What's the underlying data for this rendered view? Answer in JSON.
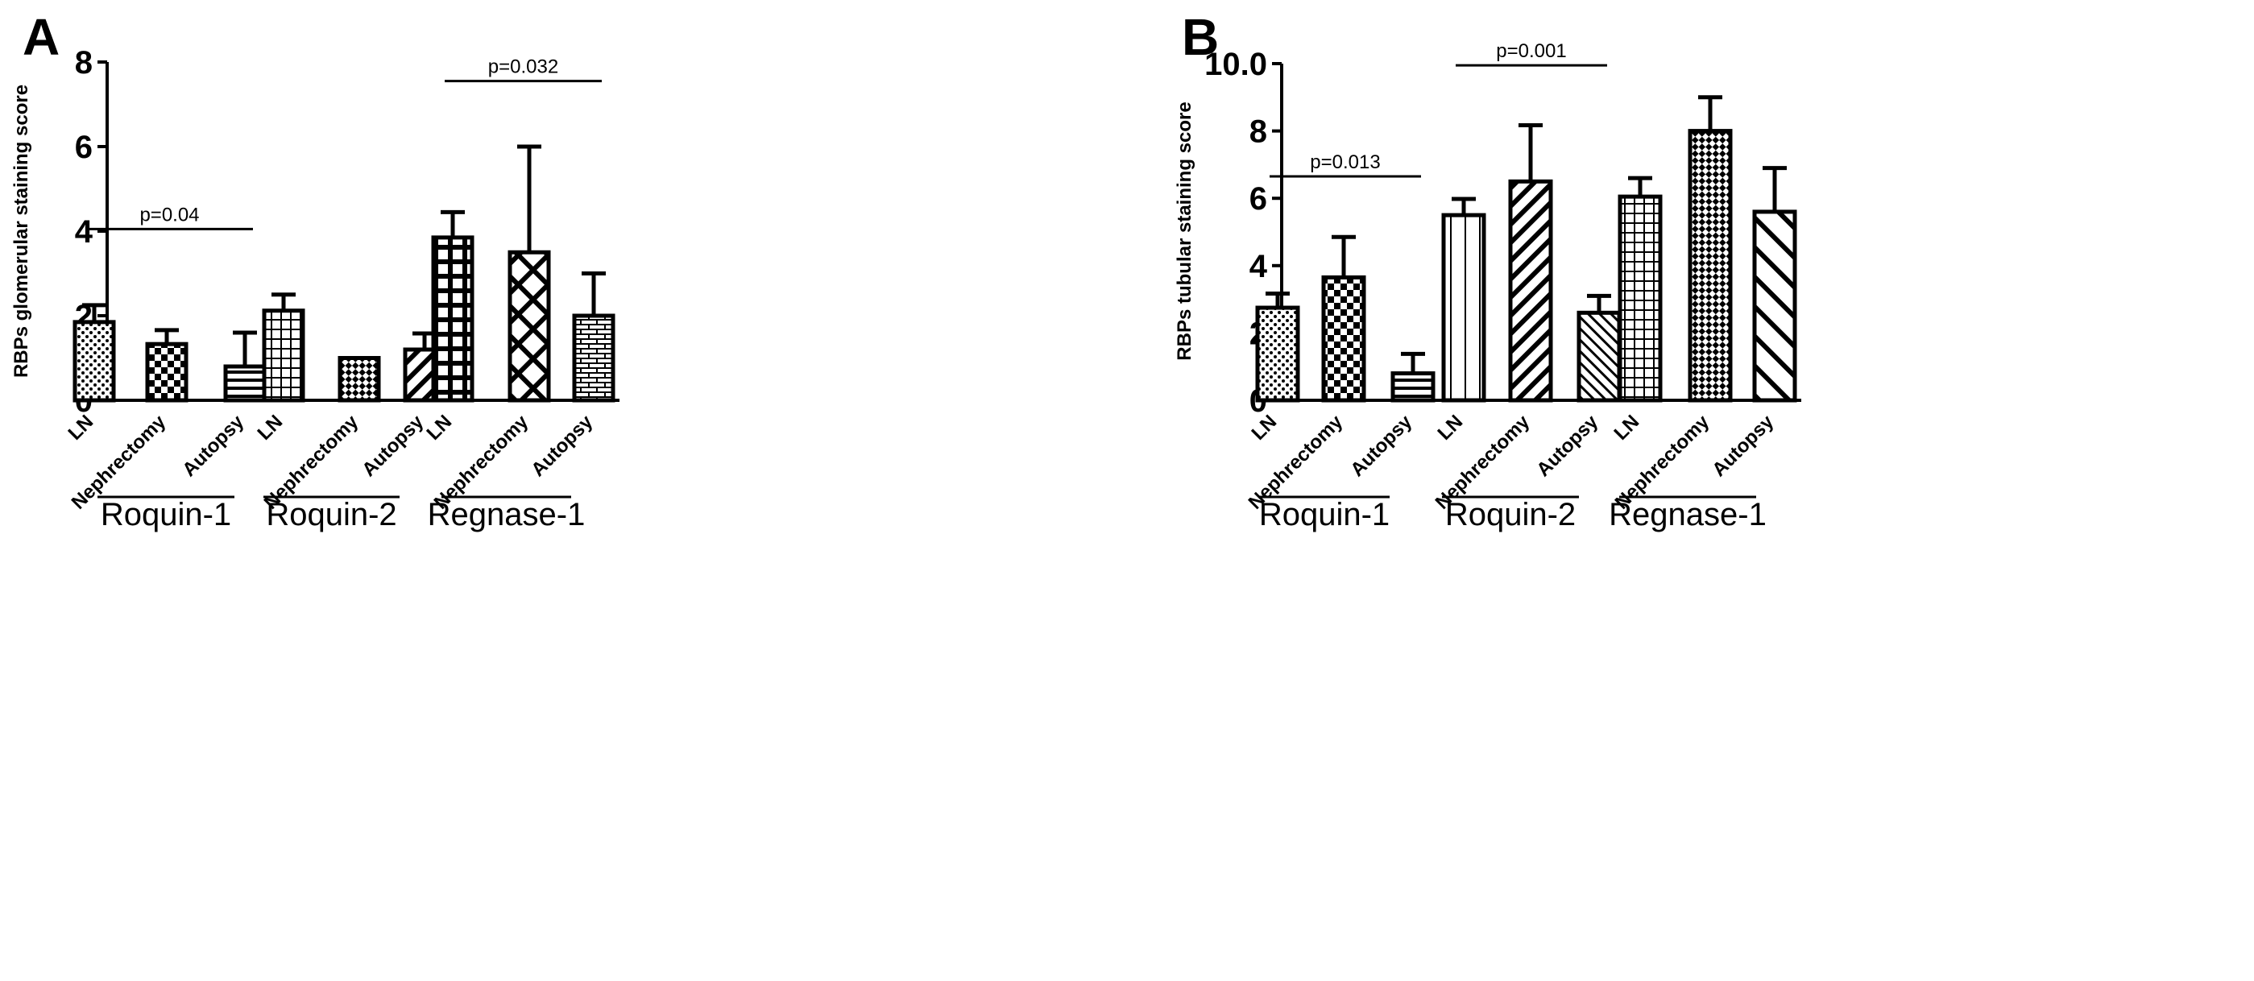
{
  "chart_data": [
    {
      "panel": "A",
      "type": "bar",
      "title": "",
      "ylabel": "RBPs glomerular staining score",
      "xlabel": "",
      "ylim": [
        0,
        8
      ],
      "yticks": [
        "0",
        "2",
        "4",
        "6",
        "8"
      ],
      "groups": [
        "Roquin-1",
        "Roquin-2",
        "Regnase-1"
      ],
      "categories": [
        "LN",
        "Nephrectomy",
        "Autopsy"
      ],
      "series": [
        {
          "name": "Roquin-1",
          "values": [
            1.85,
            1.33,
            0.8
          ],
          "errors": [
            0.4,
            0.33,
            0.8
          ]
        },
        {
          "name": "Roquin-2",
          "values": [
            2.12,
            1.0,
            1.2
          ],
          "errors": [
            0.38,
            0.0,
            0.38
          ]
        },
        {
          "name": "Regnase-1",
          "values": [
            3.85,
            3.5,
            2.0
          ],
          "errors": [
            0.6,
            2.5,
            1.0
          ]
        }
      ],
      "patterns": [
        "dots",
        "checker",
        "hlines",
        "grid",
        "diag-check",
        "diag-lines",
        "bold-grid",
        "diamond",
        "brick"
      ],
      "annotations": [
        {
          "text": "p=0.04",
          "from": [
            0,
            0
          ],
          "to": [
            0,
            2
          ],
          "y": 4.05
        },
        {
          "text": "p=0.032",
          "from": [
            2,
            0
          ],
          "to": [
            2,
            2
          ],
          "y": 7.55
        }
      ]
    },
    {
      "panel": "B",
      "type": "bar",
      "title": "",
      "ylabel": "RBPs tubular staining score",
      "xlabel": "",
      "ylim": [
        0,
        10
      ],
      "yticks": [
        "0",
        "2",
        "4",
        "6",
        "8",
        "10.0"
      ],
      "groups": [
        "Roquin-1",
        "Roquin-2",
        "Regnase-1"
      ],
      "categories": [
        "LN",
        "Nephrectomy",
        "Autopsy"
      ],
      "series": [
        {
          "name": "Roquin-1",
          "values": [
            2.75,
            3.65,
            0.8
          ],
          "errors": [
            0.42,
            1.2,
            0.58
          ]
        },
        {
          "name": "Roquin-2",
          "values": [
            5.5,
            6.5,
            2.6
          ],
          "errors": [
            0.48,
            1.67,
            0.5
          ]
        },
        {
          "name": "Regnase-1",
          "values": [
            6.05,
            8.0,
            5.6
          ],
          "errors": [
            0.55,
            1.0,
            1.3
          ]
        }
      ],
      "patterns": [
        "dots",
        "checker",
        "hlines",
        "vlines",
        "diag-lines",
        "diag-dense",
        "grid",
        "diag-check",
        "diag-wide"
      ],
      "annotations": [
        {
          "text": "p=0.013",
          "from": [
            0,
            0
          ],
          "to": [
            0,
            2
          ],
          "y": 6.65
        },
        {
          "text": "p=0.001",
          "from": [
            1,
            0
          ],
          "to": [
            1,
            2
          ],
          "y": 9.95
        }
      ]
    }
  ]
}
